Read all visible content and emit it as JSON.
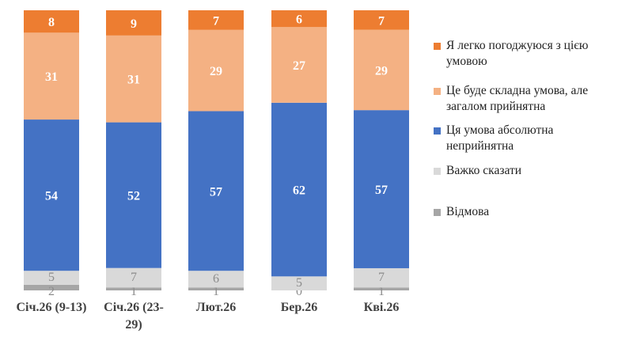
{
  "chart_data": {
    "type": "bar",
    "stacked": true,
    "orientation": "vertical",
    "categories": [
      [
        "Січ.26 (9-13)"
      ],
      [
        "Січ.26 (23-",
        "29)"
      ],
      [
        "Лют.26"
      ],
      [
        "Бер.26"
      ],
      [
        "Кві.26"
      ]
    ],
    "series": [
      {
        "name": "Відмова",
        "color": "#a6a6a6",
        "values": [
          2,
          1,
          1,
          0,
          1
        ]
      },
      {
        "name": "Важко сказати",
        "color": "#d9d9d9",
        "values": [
          5,
          7,
          6,
          5,
          7
        ]
      },
      {
        "name": "Ця умова абсолютна неприйнятна",
        "color": "#4472c4",
        "values": [
          54,
          52,
          57,
          62,
          57
        ]
      },
      {
        "name": "Це буде складна умова, але загалом прийнятна",
        "color": "#f4b183",
        "values": [
          31,
          31,
          29,
          27,
          29
        ]
      },
      {
        "name": "Я легко погоджуюся з цією умовою",
        "color": "#ed7d31",
        "values": [
          8,
          9,
          7,
          6,
          7
        ]
      }
    ],
    "legend": {
      "position": "right",
      "items": [
        {
          "lines": [
            "Я легко погоджуюся з цією",
            "умовою"
          ],
          "color": "#ed7d31"
        },
        {
          "lines": [
            "Це буде складна умова, але",
            "загалом прийнятна"
          ],
          "color": "#f4b183"
        },
        {
          "lines": [
            "Ця умова абсолютна",
            "неприйнятна"
          ],
          "color": "#4472c4"
        },
        {
          "lines": [
            "Важко сказати"
          ],
          "color": "#d9d9d9"
        },
        {
          "lines": [
            "Відмова"
          ],
          "color": "#a6a6a6"
        }
      ]
    },
    "ylim": [
      0,
      100
    ],
    "grid": false,
    "title": "",
    "xlabel": "",
    "ylabel": ""
  }
}
